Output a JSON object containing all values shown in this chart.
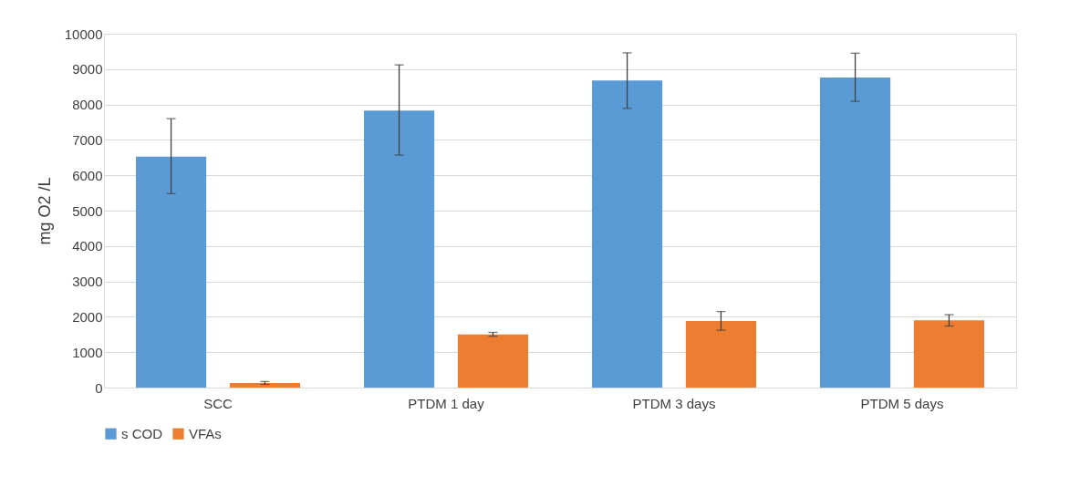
{
  "chart_data": {
    "type": "bar",
    "ylabel": "mg O2 /L",
    "categories": [
      "SCC",
      "PTDM 1 day",
      "PTDM 3 days",
      "PTDM 5 days"
    ],
    "series": [
      {
        "name": "s COD",
        "color": "#5b9bd5",
        "values": [
          6530,
          7830,
          8680,
          8760
        ],
        "errors": [
          [
            5480,
            7600
          ],
          [
            6570,
            9120
          ],
          [
            7890,
            9460
          ],
          [
            8090,
            9450
          ]
        ]
      },
      {
        "name": "VFAs",
        "color": "#ed7d31",
        "values": [
          130,
          1500,
          1880,
          1900
        ],
        "errors": [
          [
            90,
            170
          ],
          [
            1450,
            1560
          ],
          [
            1620,
            2150
          ],
          [
            1740,
            2060
          ]
        ]
      }
    ],
    "ylim": [
      0,
      10000
    ],
    "yticks": [
      0,
      1000,
      2000,
      3000,
      4000,
      5000,
      6000,
      7000,
      8000,
      9000,
      10000
    ],
    "grid": "y",
    "legend": "bottom"
  }
}
